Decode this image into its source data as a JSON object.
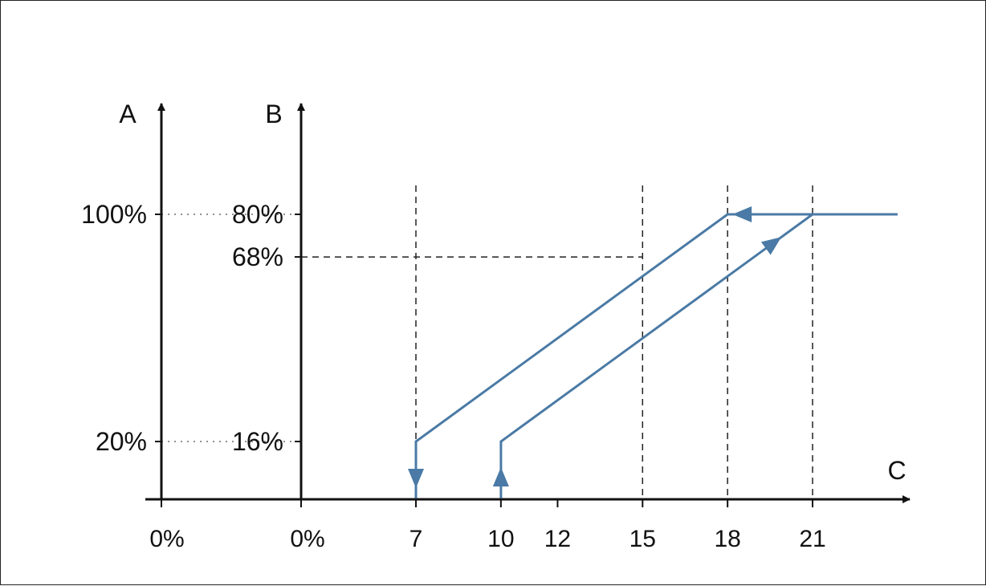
{
  "chart_data": {
    "type": "line",
    "axis_a": {
      "label": "A",
      "zero_label": "0%",
      "ticks": [
        {
          "label": "100%",
          "b_value": 80
        },
        {
          "label": "20%",
          "b_value": 16
        }
      ]
    },
    "axis_b": {
      "label": "B",
      "zero_label": "0%",
      "ticks": [
        {
          "label": "80%",
          "value": 80
        },
        {
          "label": "68%",
          "value": 68
        },
        {
          "label": "16%",
          "value": 16
        }
      ]
    },
    "axis_c": {
      "label": "C",
      "xlim": [
        4.6,
        25
      ],
      "ticks": [
        {
          "label": "7",
          "value": 7
        },
        {
          "label": "10",
          "value": 10
        },
        {
          "label": "12",
          "value": 12
        },
        {
          "label": "15",
          "value": 15
        },
        {
          "label": "18",
          "value": 18
        },
        {
          "label": "21",
          "value": 21
        }
      ]
    },
    "ylim": [
      0,
      100
    ],
    "series": [
      {
        "direction": "rising",
        "points": [
          [
            10,
            0
          ],
          [
            10,
            16
          ],
          [
            21,
            80
          ],
          [
            24,
            80
          ]
        ]
      },
      {
        "direction": "falling",
        "points": [
          [
            21,
            80
          ],
          [
            18,
            80
          ],
          [
            7,
            16
          ],
          [
            7,
            0
          ]
        ]
      }
    ],
    "guides": {
      "vertical_at": [
        7,
        15,
        18,
        21
      ],
      "horizontal": [
        {
          "b_value": 68,
          "to_c": 15
        }
      ]
    },
    "colors": {
      "axis": "#111111",
      "curve": "#4a7aa5",
      "guide": "#222222"
    }
  }
}
